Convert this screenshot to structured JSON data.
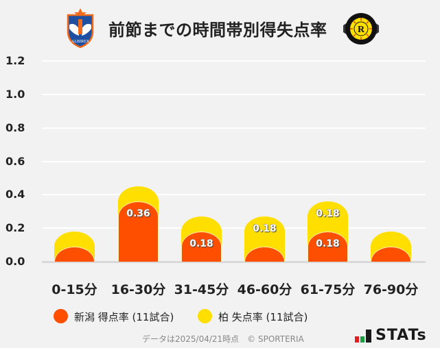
{
  "header": {
    "title": "前節までの時間帯別得失点率",
    "home_logo": "albirex-niigata-crest-icon",
    "away_logo": "kashiwa-reysol-crest-icon"
  },
  "colors": {
    "home": "#fe4f00",
    "away": "#ffdf00",
    "background": "#f2f2f2",
    "grid": "#ffffff"
  },
  "chart_data": {
    "type": "bar",
    "stacked": true,
    "title": "前節までの時間帯別得失点率",
    "categories": [
      "0-15分",
      "16-30分",
      "31-45分",
      "46-60分",
      "61-75分",
      "76-90分"
    ],
    "series": [
      {
        "name": "新潟 得点率 (11試合)",
        "color": "#fe4f00",
        "values": [
          0,
          0.36,
          0.18,
          0,
          0.18,
          0
        ]
      },
      {
        "name": "柏 失点率 (11試合)",
        "color": "#ffdf00",
        "values": [
          0,
          0,
          0,
          0.18,
          0.18,
          0
        ]
      }
    ],
    "data_labels": [
      {
        "series": 0,
        "category": 1,
        "text": "0.36"
      },
      {
        "series": 0,
        "category": 2,
        "text": "0.18"
      },
      {
        "series": 1,
        "category": 3,
        "text": "0.18"
      },
      {
        "series": 0,
        "category": 4,
        "text": "0.18"
      },
      {
        "series": 1,
        "category": 4,
        "text": "0.18"
      }
    ],
    "xlabel": "",
    "ylabel": "",
    "ylim": [
      0,
      1.2
    ],
    "yticks": [
      "1.2",
      "1.0",
      "0.8",
      "0.6",
      "0.4",
      "0.2",
      "0.0"
    ],
    "grid": true,
    "legend_position": "bottom"
  },
  "legend": {
    "items": [
      {
        "label": "新潟 得点率 (11試合)"
      },
      {
        "label": "柏 失点率 (11試合)"
      }
    ]
  },
  "footer": {
    "text": "データは2025/04/21時点　© SPORTERIA",
    "brand": "STATs"
  }
}
